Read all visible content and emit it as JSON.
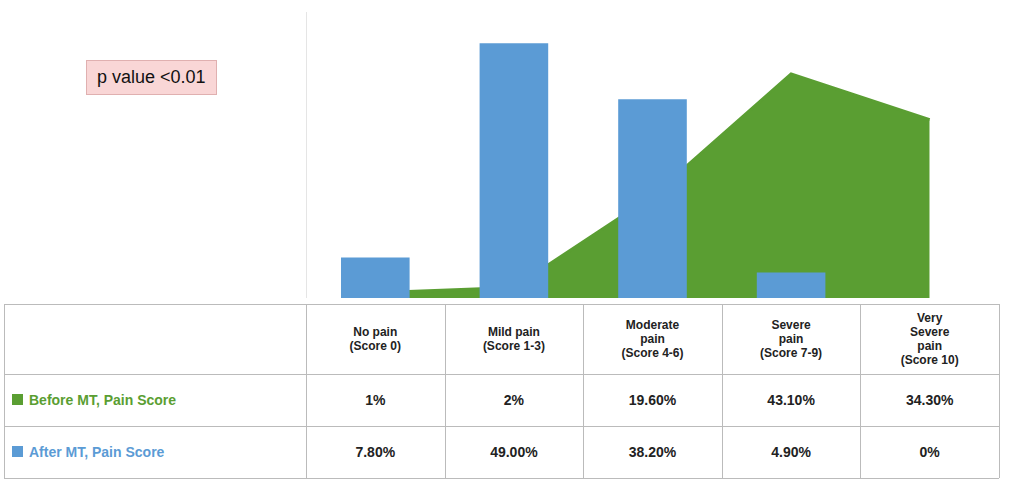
{
  "chart_data": {
    "type": "bar",
    "categories": [
      "No pain\n(Score 0)",
      "Mild pain\n(Score 1-3)",
      "Moderate\npain\n(Score 4-6)",
      "Severe\npain\n(Score 7-9)",
      "Very\nSevere\npain\n(Score 10)"
    ],
    "series": [
      {
        "name": "Before MT, Pain Score",
        "type": "area",
        "color": "#5a9e32",
        "values": [
          1.0,
          2.0,
          19.6,
          43.1,
          34.3
        ],
        "value_labels": [
          "1%",
          "2%",
          "19.60%",
          "43.10%",
          "34.30%"
        ]
      },
      {
        "name": "After MT, Pain Score",
        "type": "bar",
        "color": "#5b9bd5",
        "values": [
          7.8,
          49.0,
          38.2,
          4.9,
          0.0
        ],
        "value_labels": [
          "7.80%",
          "49.00%",
          "38.20%",
          "4.90%",
          "0%"
        ]
      }
    ],
    "ylim": [
      0,
      55
    ],
    "grid": false,
    "tick_labels": false,
    "data_labels": true,
    "annotations": [
      "p value <0.01"
    ]
  }
}
